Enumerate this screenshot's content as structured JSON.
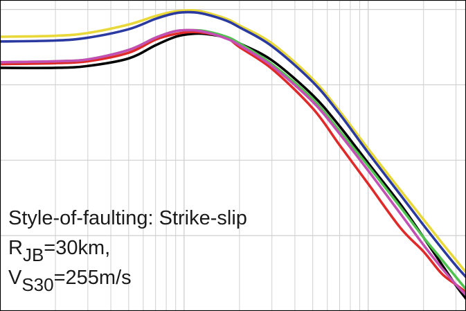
{
  "chart_data": {
    "type": "line",
    "x_scale": "log",
    "grid": true,
    "legend": "none",
    "title": "",
    "xlabel": "",
    "ylabel": "",
    "xlim": [
      0.01,
      3.4
    ],
    "ylim": [
      -3.2,
      0.1
    ],
    "annotations": {
      "style_text": "Style-of-faulting: Strike-slip",
      "rjb_main": "R",
      "rjb_sub": "JB",
      "rjb_value": "=30km,",
      "vs_main": "V",
      "vs_sub": "S30",
      "vs_value": "=255m/s"
    },
    "x_major": [
      0.01,
      0.1,
      1
    ],
    "y_grid": [
      0,
      -0.8,
      -1.6,
      -2.4
    ],
    "series": [
      {
        "color": "#e8d83a",
        "x": [
          0.01,
          0.02,
          0.03,
          0.05,
          0.07,
          0.09,
          0.11,
          0.13,
          0.17,
          0.2,
          0.3,
          0.5,
          0.7,
          1.0,
          1.5,
          2.0,
          2.5,
          3.0,
          3.4
        ],
        "y": [
          -0.29,
          -0.28,
          -0.25,
          -0.16,
          -0.07,
          -0.02,
          -0.01,
          -0.03,
          -0.1,
          -0.17,
          -0.36,
          -0.74,
          -1.08,
          -1.48,
          -1.92,
          -2.23,
          -2.47,
          -2.66,
          -2.79
        ]
      },
      {
        "color": "#2a3aa0",
        "x": [
          0.01,
          0.02,
          0.03,
          0.05,
          0.07,
          0.09,
          0.11,
          0.13,
          0.17,
          0.2,
          0.3,
          0.5,
          0.7,
          1.0,
          1.5,
          2.0,
          2.5,
          3.0,
          3.4
        ],
        "y": [
          -0.34,
          -0.33,
          -0.3,
          -0.21,
          -0.1,
          -0.04,
          -0.03,
          -0.05,
          -0.12,
          -0.19,
          -0.39,
          -0.77,
          -1.11,
          -1.52,
          -1.97,
          -2.29,
          -2.53,
          -2.72,
          -2.84
        ]
      },
      {
        "color": "#000000",
        "x": [
          0.01,
          0.02,
          0.03,
          0.05,
          0.07,
          0.09,
          0.11,
          0.13,
          0.17,
          0.2,
          0.3,
          0.5,
          0.7,
          1.0,
          1.5,
          2.0,
          2.5,
          3.0,
          3.4
        ],
        "y": [
          -0.62,
          -0.62,
          -0.6,
          -0.52,
          -0.38,
          -0.29,
          -0.26,
          -0.26,
          -0.3,
          -0.36,
          -0.54,
          -0.91,
          -1.24,
          -1.63,
          -2.07,
          -2.42,
          -2.7,
          -2.93,
          -3.07
        ]
      },
      {
        "color": "#e02a2a",
        "x": [
          0.01,
          0.02,
          0.03,
          0.05,
          0.07,
          0.09,
          0.11,
          0.13,
          0.17,
          0.2,
          0.3,
          0.5,
          0.7,
          1.0,
          1.5,
          2.0,
          2.5,
          3.0,
          3.4
        ],
        "y": [
          -0.58,
          -0.57,
          -0.55,
          -0.46,
          -0.32,
          -0.26,
          -0.24,
          -0.25,
          -0.3,
          -0.4,
          -0.63,
          -1.05,
          -1.44,
          -1.85,
          -2.32,
          -2.57,
          -2.8,
          -2.92,
          -3.0
        ]
      },
      {
        "color": "#4fc24f",
        "x": [
          0.01,
          0.02,
          0.03,
          0.05,
          0.07,
          0.09,
          0.11,
          0.13,
          0.17,
          0.2,
          0.3,
          0.5,
          0.7,
          1.0,
          1.5,
          2.0,
          2.5,
          3.0,
          3.4
        ],
        "y": [
          -0.56,
          -0.55,
          -0.53,
          -0.43,
          -0.3,
          -0.23,
          -0.22,
          -0.23,
          -0.29,
          -0.36,
          -0.58,
          -0.95,
          -1.29,
          -1.66,
          -2.1,
          -2.42,
          -2.65,
          -2.84,
          -2.97
        ]
      },
      {
        "color": "#c34fb5",
        "x": [
          0.01,
          0.02,
          0.03,
          0.05,
          0.07,
          0.09,
          0.11,
          0.13,
          0.17,
          0.2,
          0.3,
          0.5,
          0.7,
          1.0,
          1.5,
          2.0,
          2.5,
          3.0,
          3.4
        ],
        "y": [
          -0.56,
          -0.55,
          -0.53,
          -0.43,
          -0.3,
          -0.23,
          -0.22,
          -0.24,
          -0.31,
          -0.38,
          -0.6,
          -0.98,
          -1.32,
          -1.71,
          -2.17,
          -2.5,
          -2.74,
          -2.92,
          -3.03
        ]
      }
    ]
  }
}
